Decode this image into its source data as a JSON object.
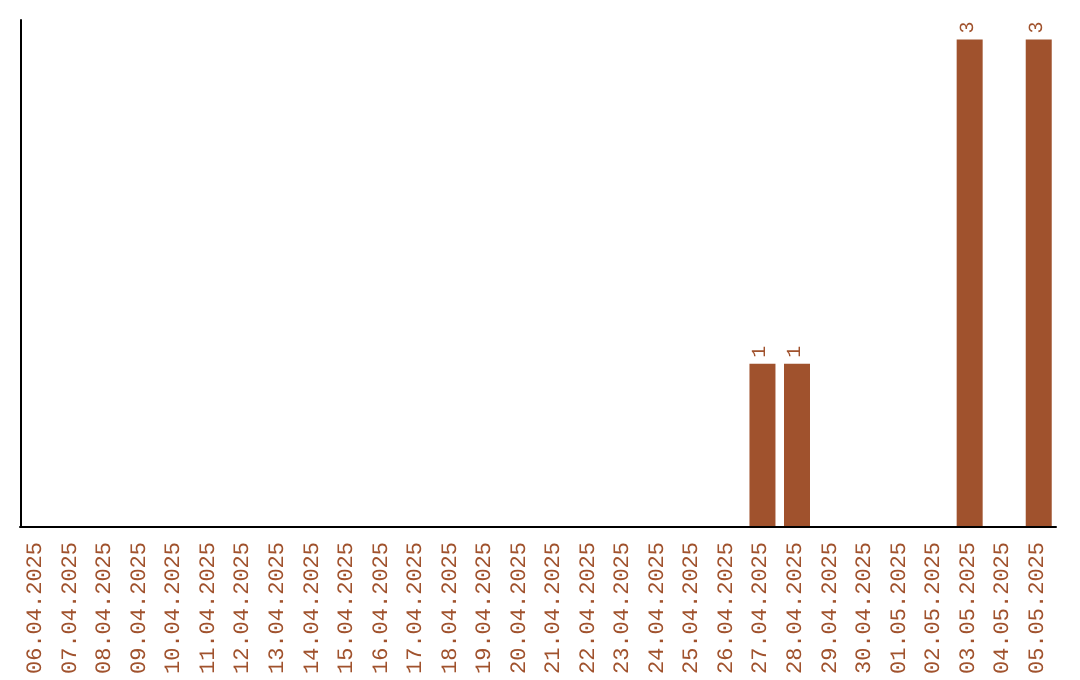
{
  "chart_data": {
    "type": "bar",
    "categories": [
      "06.04.2025",
      "07.04.2025",
      "08.04.2025",
      "09.04.2025",
      "10.04.2025",
      "11.04.2025",
      "12.04.2025",
      "13.04.2025",
      "14.04.2025",
      "15.04.2025",
      "16.04.2025",
      "17.04.2025",
      "18.04.2025",
      "19.04.2025",
      "20.04.2025",
      "21.04.2025",
      "22.04.2025",
      "23.04.2025",
      "24.04.2025",
      "25.04.2025",
      "26.04.2025",
      "27.04.2025",
      "28.04.2025",
      "29.04.2025",
      "30.04.2025",
      "01.05.2025",
      "02.05.2025",
      "03.05.2025",
      "04.05.2025",
      "05.05.2025"
    ],
    "values": [
      null,
      null,
      null,
      null,
      null,
      null,
      null,
      null,
      null,
      null,
      null,
      null,
      null,
      null,
      null,
      null,
      null,
      null,
      null,
      null,
      null,
      1,
      1,
      null,
      null,
      null,
      null,
      3,
      null,
      3
    ],
    "value_labels": [
      null,
      null,
      null,
      null,
      null,
      null,
      null,
      null,
      null,
      null,
      null,
      null,
      null,
      null,
      null,
      null,
      null,
      null,
      null,
      null,
      null,
      "1",
      "1",
      null,
      null,
      null,
      null,
      "3",
      null,
      "3"
    ],
    "color": "#a0522d",
    "grid": false,
    "legend": false,
    "tick_labels": "x"
  }
}
